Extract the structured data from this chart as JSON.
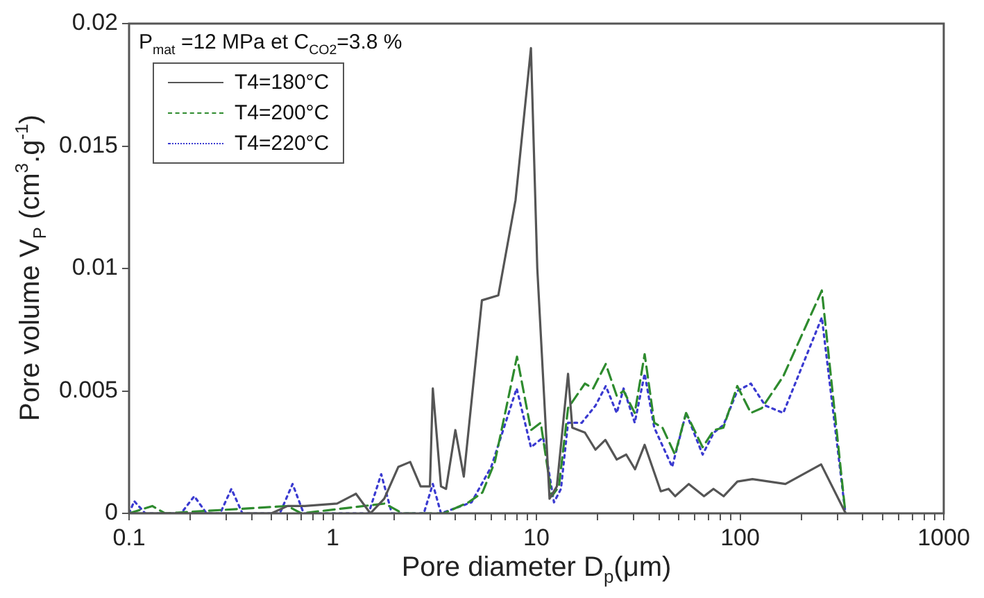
{
  "chart_data": {
    "type": "line",
    "xlabel": "Pore diameter D$_{p}$(μm)",
    "ylabel": "Pore volume V$_{P}$ (cm$^{3}$.g$^{-1}$)",
    "legend_title": "P$_{mat}$ =12 MPa et C$_{CO2}$=3.8 %",
    "log": "x",
    "xlim": [
      0.1,
      1000
    ],
    "xticks": [
      0.1,
      {
        "value": 0.2,
        "label": null
      },
      {
        "value": 0.3,
        "label": null
      },
      {
        "value": 0.4,
        "label": null
      },
      {
        "value": 0.5,
        "label": null
      },
      {
        "value": 0.6,
        "label": null
      },
      {
        "value": 0.7,
        "label": null
      },
      {
        "value": 0.8,
        "label": null
      },
      {
        "value": 0.9,
        "label": null
      },
      1,
      {
        "value": 2,
        "label": null
      },
      {
        "value": 3,
        "label": null
      },
      {
        "value": 4,
        "label": null
      },
      {
        "value": 5,
        "label": null
      },
      {
        "value": 6,
        "label": null
      },
      {
        "value": 7,
        "label": null
      },
      {
        "value": 8,
        "label": null
      },
      {
        "value": 9,
        "label": null
      },
      10,
      {
        "value": 20,
        "label": null
      },
      {
        "value": 30,
        "label": null
      },
      {
        "value": 40,
        "label": null
      },
      {
        "value": 50,
        "label": null
      },
      {
        "value": 60,
        "label": null
      },
      {
        "value": 70,
        "label": null
      },
      {
        "value": 80,
        "label": null
      },
      {
        "value": 90,
        "label": null
      },
      100,
      {
        "value": 200,
        "label": null
      },
      {
        "value": 300,
        "label": null
      },
      {
        "value": 400,
        "label": null
      },
      {
        "value": 500,
        "label": null
      },
      {
        "value": 600,
        "label": null
      },
      {
        "value": 700,
        "label": null
      },
      {
        "value": 800,
        "label": null
      },
      {
        "value": 900,
        "label": null
      },
      1000
    ],
    "ylim": [
      0,
      0.02
    ],
    "yticks": [
      0,
      0.005,
      0.01,
      0.015,
      0.02
    ],
    "grid": false,
    "legend": "top left",
    "marker": "none",
    "series": [
      {
        "name": "T4=180°C",
        "color": "#555555",
        "line_style": "solid",
        "x": [
          0.1,
          0.5,
          0.6,
          0.73,
          1.05,
          1.3,
          1.53,
          1.79,
          2.1,
          2.4,
          2.7,
          3.0,
          3.1,
          3.4,
          3.6,
          4.0,
          4.4,
          5.4,
          6.5,
          7.9,
          9.4,
          10.1,
          11.6,
          12.6,
          14.3,
          15,
          17.3,
          19.5,
          21.8,
          24.8,
          27.6,
          30.5,
          34,
          40.8,
          44.5,
          48,
          56,
          66.5,
          74,
          83,
          97,
          115,
          167,
          250,
          330
        ],
        "values": [
          0,
          0,
          0.0003,
          0.0003,
          0.0004,
          0.0008,
          0,
          0.0006,
          0.0019,
          0.0021,
          0.0011,
          0.0011,
          0.0051,
          0.0011,
          0.001,
          0.0034,
          0.0015,
          0.0087,
          0.0089,
          0.0128,
          0.019,
          0.01,
          0.0006,
          0.0011,
          0.0057,
          0.0035,
          0.0033,
          0.0026,
          0.003,
          0.0022,
          0.0024,
          0.0018,
          0.0028,
          0.0009,
          0.001,
          0.0007,
          0.0012,
          0.0007,
          0.001,
          0.0007,
          0.0013,
          0.0014,
          0.0012,
          0.002,
          0
        ]
      },
      {
        "name": "T4=200°C",
        "color": "#2e8b2e",
        "line_style": "dashed",
        "x": [
          0.1,
          0.13,
          0.15,
          0.6,
          0.7,
          1.8,
          2.2,
          3.5,
          4.64,
          5.43,
          6.25,
          8.03,
          9.4,
          10.5,
          11.9,
          12.9,
          14.3,
          17.3,
          19,
          21.9,
          24.8,
          26.8,
          30.4,
          34,
          37.9,
          41.6,
          47.9,
          54.3,
          65.5,
          74.3,
          82.8,
          96.9,
          113,
          128,
          163,
          252,
          329
        ],
        "values": [
          0,
          0.0003,
          0,
          0.0003,
          0,
          0.0004,
          0,
          0,
          0.00045,
          0.00085,
          0.0021,
          0.0064,
          0.0034,
          0.0037,
          0.0007,
          0.0011,
          0.0043,
          0.0053,
          0.0051,
          0.0061,
          0.0048,
          0.005,
          0.0041,
          0.0065,
          0.0037,
          0.0035,
          0.0024,
          0.0041,
          0.0027,
          0.0034,
          0.0035,
          0.0052,
          0.0041,
          0.0043,
          0.0056,
          0.0091,
          0
        ]
      },
      {
        "name": "T4=220°C",
        "color": "#3a3ad0",
        "line_style": "dotted",
        "x": [
          0.1,
          0.106,
          0.12,
          0.18,
          0.209,
          0.24,
          0.28,
          0.318,
          0.36,
          0.55,
          0.635,
          0.72,
          1.5,
          1.73,
          1.95,
          2.8,
          3.1,
          3.4,
          4.8,
          6,
          8,
          9.4,
          10.8,
          12.2,
          13.2,
          14.3,
          16.7,
          19.5,
          21.9,
          24.8,
          26.8,
          30.4,
          34,
          37.9,
          46.4,
          54.3,
          65.5,
          74.3,
          82.8,
          96.9,
          113,
          133,
          163,
          252,
          329
        ],
        "values": [
          0,
          0.0005,
          0,
          0,
          0.0007,
          0,
          0,
          0.001,
          0,
          0,
          0.0012,
          0,
          0,
          0.0016,
          0,
          0,
          0.0012,
          0,
          0.00045,
          0.0019,
          0.0051,
          0.0027,
          0.0031,
          0.00045,
          0.001,
          0.0037,
          0.0037,
          0.0044,
          0.0052,
          0.0041,
          0.0051,
          0.0037,
          0.0057,
          0.0035,
          0.0019,
          0.0041,
          0.0024,
          0.0033,
          0.0036,
          0.005,
          0.0053,
          0.0044,
          0.0041,
          0.008,
          0
        ]
      }
    ]
  }
}
